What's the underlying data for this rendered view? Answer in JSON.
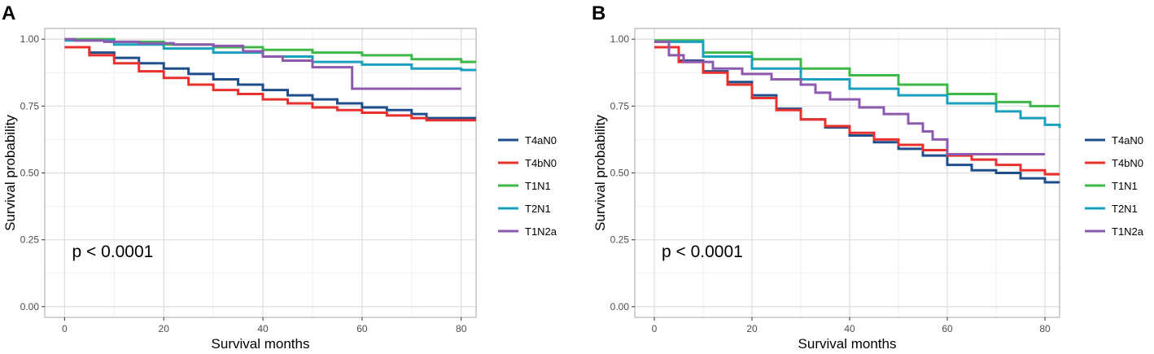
{
  "chart_data": [
    {
      "type": "line",
      "panel_label": "A",
      "xlabel": "Survival months",
      "ylabel": "Survival probability",
      "xlim": [
        -4,
        83
      ],
      "ylim": [
        -0.04,
        1.04
      ],
      "x_ticks": [
        0,
        20,
        40,
        60,
        80
      ],
      "x_tick_labels": [
        "0",
        "20",
        "40",
        "60",
        "80"
      ],
      "y_ticks": [
        0,
        0.25,
        0.5,
        0.75,
        1
      ],
      "y_tick_labels": [
        "0.00",
        "0.25",
        "0.50",
        "0.75",
        "1.00"
      ],
      "annotation": "p < 0.0001",
      "legend_position": "right",
      "grid": true,
      "series": [
        {
          "name": "T4aN0",
          "color": "#1f4e8c",
          "x": [
            0,
            5,
            10,
            15,
            20,
            25,
            30,
            35,
            40,
            45,
            50,
            55,
            60,
            65,
            70,
            73,
            83
          ],
          "y": [
            0.97,
            0.95,
            0.93,
            0.91,
            0.89,
            0.87,
            0.85,
            0.83,
            0.81,
            0.79,
            0.775,
            0.76,
            0.745,
            0.735,
            0.72,
            0.705,
            0.705
          ]
        },
        {
          "name": "T4bN0",
          "color": "#e8312f",
          "x": [
            0,
            5,
            10,
            15,
            20,
            25,
            30,
            35,
            40,
            45,
            50,
            55,
            60,
            65,
            70,
            73,
            83
          ],
          "y": [
            0.97,
            0.94,
            0.91,
            0.88,
            0.855,
            0.83,
            0.81,
            0.795,
            0.775,
            0.76,
            0.745,
            0.735,
            0.725,
            0.715,
            0.705,
            0.697,
            0.697
          ]
        },
        {
          "name": "T1N1",
          "color": "#3db849",
          "x": [
            0,
            10,
            20,
            30,
            40,
            50,
            60,
            70,
            80,
            83
          ],
          "y": [
            1.0,
            0.99,
            0.98,
            0.97,
            0.96,
            0.95,
            0.94,
            0.925,
            0.915,
            0.915
          ]
        },
        {
          "name": "T2N1",
          "color": "#1aa0be",
          "x": [
            0,
            10,
            20,
            30,
            40,
            50,
            60,
            70,
            80,
            83
          ],
          "y": [
            0.995,
            0.98,
            0.965,
            0.95,
            0.935,
            0.915,
            0.905,
            0.89,
            0.885,
            0.885
          ]
        },
        {
          "name": "T1N2a",
          "color": "#8e5ab0",
          "x": [
            0,
            2,
            8,
            15,
            22,
            30,
            35,
            36,
            40,
            44,
            50,
            58,
            80
          ],
          "y": [
            1.0,
            0.995,
            0.99,
            0.985,
            0.98,
            0.975,
            0.975,
            0.955,
            0.935,
            0.92,
            0.895,
            0.815,
            0.815
          ]
        }
      ]
    },
    {
      "type": "line",
      "panel_label": "B",
      "xlabel": "Survival months",
      "ylabel": "Survival probability",
      "xlim": [
        -4,
        83
      ],
      "ylim": [
        -0.04,
        1.04
      ],
      "x_ticks": [
        0,
        20,
        40,
        60,
        80
      ],
      "x_tick_labels": [
        "0",
        "20",
        "40",
        "60",
        "80"
      ],
      "y_ticks": [
        0,
        0.25,
        0.5,
        0.75,
        1
      ],
      "y_tick_labels": [
        "0.00",
        "0.25",
        "0.50",
        "0.75",
        "1.00"
      ],
      "annotation": "p < 0.0001",
      "legend_position": "right",
      "grid": true,
      "series": [
        {
          "name": "T4aN0",
          "color": "#1f4e8c",
          "x": [
            0,
            5,
            10,
            15,
            20,
            25,
            30,
            35,
            40,
            45,
            50,
            55,
            60,
            65,
            70,
            75,
            80,
            83
          ],
          "y": [
            0.97,
            0.92,
            0.88,
            0.84,
            0.79,
            0.74,
            0.7,
            0.67,
            0.64,
            0.615,
            0.59,
            0.565,
            0.53,
            0.51,
            0.5,
            0.48,
            0.465,
            0.465
          ]
        },
        {
          "name": "T4bN0",
          "color": "#e8312f",
          "x": [
            0,
            5,
            10,
            15,
            20,
            25,
            30,
            35,
            40,
            45,
            50,
            55,
            60,
            65,
            70,
            75,
            80,
            83
          ],
          "y": [
            0.97,
            0.915,
            0.875,
            0.83,
            0.78,
            0.735,
            0.7,
            0.675,
            0.65,
            0.625,
            0.605,
            0.585,
            0.565,
            0.55,
            0.53,
            0.51,
            0.495,
            0.495
          ]
        },
        {
          "name": "T1N1",
          "color": "#3db849",
          "x": [
            0,
            10,
            20,
            30,
            40,
            50,
            60,
            70,
            77,
            83
          ],
          "y": [
            0.995,
            0.95,
            0.925,
            0.89,
            0.865,
            0.83,
            0.795,
            0.765,
            0.75,
            0.75
          ]
        },
        {
          "name": "T2N1",
          "color": "#1aa0be",
          "x": [
            0,
            10,
            20,
            30,
            40,
            50,
            60,
            70,
            75,
            80,
            83
          ],
          "y": [
            0.99,
            0.935,
            0.89,
            0.85,
            0.815,
            0.79,
            0.76,
            0.73,
            0.705,
            0.68,
            0.668
          ]
        },
        {
          "name": "T1N2a",
          "color": "#8e5ab0",
          "x": [
            0,
            3,
            6,
            12,
            18,
            24,
            30,
            33,
            36,
            42,
            47,
            52,
            55,
            57,
            60,
            80
          ],
          "y": [
            0.99,
            0.94,
            0.915,
            0.89,
            0.87,
            0.85,
            0.83,
            0.8,
            0.775,
            0.745,
            0.72,
            0.685,
            0.655,
            0.625,
            0.57,
            0.57
          ]
        }
      ]
    }
  ]
}
